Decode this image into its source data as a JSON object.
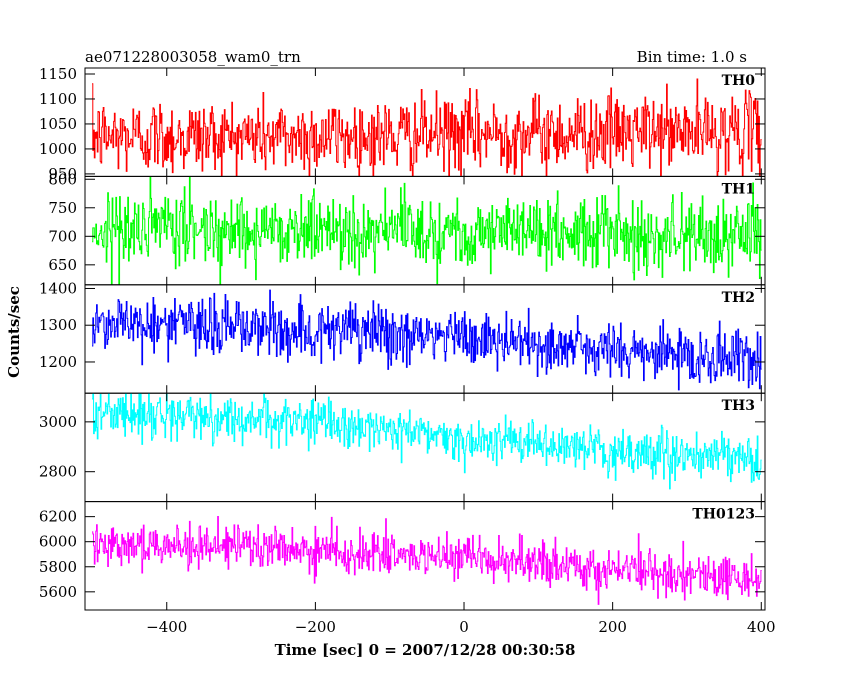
{
  "header": {
    "left": "ae071228003058_wam0_trn",
    "right": "Bin time: 1.0 s"
  },
  "chart_data": {
    "type": "line",
    "title": "ae071228003058_wam0_trn",
    "subtitle": "Bin time: 1.0 s",
    "xlabel": "Time [sec] 0 = 2007/12/28 00:30:58",
    "ylabel": "Counts/sec",
    "xlim": [
      -510,
      405
    ],
    "xticks": [
      -400,
      -200,
      0,
      200,
      400
    ],
    "x_start": -500,
    "x_end": 400,
    "bin_time": 1.0,
    "grid": false,
    "panels": [
      {
        "name": "TH0",
        "color": "#ff0000",
        "ylim": [
          945,
          1162
        ],
        "yticks": [
          950,
          1000,
          1050,
          1100,
          1150
        ],
        "trend": [
          [
            -500,
            1025
          ],
          [
            -100,
            1025
          ],
          [
            0,
            1030
          ],
          [
            400,
            1035
          ]
        ],
        "noise": 38
      },
      {
        "name": "TH1",
        "color": "#00ff00",
        "ylim": [
          615,
          805
        ],
        "yticks": [
          650,
          700,
          750,
          800
        ],
        "trend": [
          [
            -500,
            712
          ],
          [
            -250,
            713
          ],
          [
            0,
            710
          ],
          [
            400,
            700
          ]
        ],
        "noise": 32
      },
      {
        "name": "TH2",
        "color": "#0000ff",
        "ylim": [
          1115,
          1410
        ],
        "yticks": [
          1200,
          1300,
          1400
        ],
        "trend": [
          [
            -500,
            1310
          ],
          [
            -300,
            1295
          ],
          [
            0,
            1265
          ],
          [
            200,
            1230
          ],
          [
            400,
            1205
          ]
        ],
        "noise": 40
      },
      {
        "name": "TH3",
        "color": "#00ffff",
        "ylim": [
          2680,
          3115
        ],
        "yticks": [
          2800,
          3000
        ],
        "trend": [
          [
            -500,
            3040
          ],
          [
            -200,
            3000
          ],
          [
            0,
            2935
          ],
          [
            200,
            2880
          ],
          [
            400,
            2845
          ]
        ],
        "noise": 45
      },
      {
        "name": "TH0123",
        "color": "#ff00ff",
        "ylim": [
          5455,
          6320
        ],
        "yticks": [
          5600,
          5800,
          6000,
          6200
        ],
        "trend": [
          [
            -500,
            6000
          ],
          [
            -200,
            5930
          ],
          [
            0,
            5860
          ],
          [
            200,
            5780
          ],
          [
            400,
            5700
          ]
        ],
        "noise": 85
      }
    ]
  }
}
